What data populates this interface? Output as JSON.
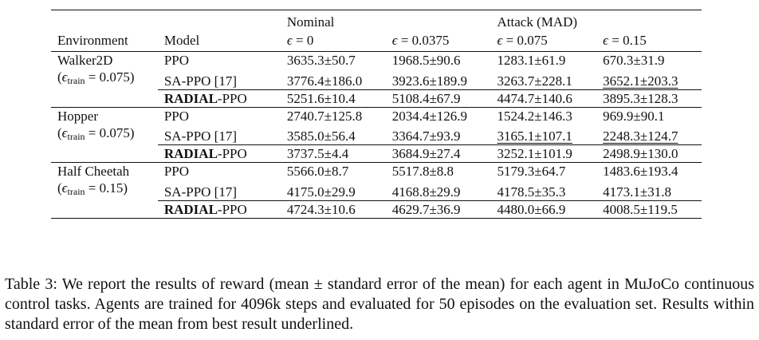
{
  "headers": {
    "environment": "Environment",
    "model": "Model",
    "nominal": "Nominal",
    "attack": "Attack (MAD)",
    "eps_cols": [
      "0",
      "0.0375",
      "0.075",
      "0.15"
    ]
  },
  "groups": [
    {
      "env": "Walker2D",
      "eps_train": "0.075",
      "rows": [
        {
          "model": "PPO",
          "values": [
            "3635.3±50.7",
            "1968.5±90.6",
            "1283.1±61.9",
            "670.3±31.9"
          ]
        },
        {
          "model": "SA-PPO [17]",
          "values": [
            "3776.4±186.0",
            "3923.6±189.9",
            "3263.7±228.1",
            "3652.1±203.3"
          ]
        }
      ],
      "radial": {
        "model_prefix": "RADIAL",
        "model_suffix": "-PPO",
        "values": [
          "5251.6±10.4",
          "5108.4±67.9",
          "4474.7±140.6",
          "3895.3±128.3"
        ]
      }
    },
    {
      "env": "Hopper",
      "eps_train": "0.075",
      "rows": [
        {
          "model": "PPO",
          "values": [
            "2740.7±125.8",
            "2034.4±126.9",
            "1524.2±146.3",
            "969.9±90.1"
          ]
        },
        {
          "model": "SA-PPO [17]",
          "values": [
            "3585.0±56.4",
            "3364.7±93.9",
            "3165.1±107.1",
            "2248.3±124.7"
          ]
        }
      ],
      "radial": {
        "model_prefix": "RADIAL",
        "model_suffix": "-PPO",
        "values": [
          "3737.5±4.4",
          "3684.9±27.4",
          "3252.1±101.9",
          "2498.9±130.0"
        ]
      }
    },
    {
      "env": "Half Cheetah",
      "eps_train": "0.15",
      "rows": [
        {
          "model": "PPO",
          "values": [
            "5566.0±8.7",
            "5517.8±8.8",
            "5179.3±64.7",
            "1483.6±193.4"
          ]
        },
        {
          "model": "SA-PPO [17]",
          "values": [
            "4175.0±29.9",
            "4168.8±29.9",
            "4178.5±35.3",
            "4173.1±31.8"
          ]
        }
      ],
      "radial": {
        "model_prefix": "RADIAL",
        "model_suffix": "-PPO",
        "values": [
          "4724.3±10.6",
          "4629.7±36.9",
          "4480.0±66.9",
          "4008.5±119.5"
        ]
      }
    }
  ],
  "caption": "Table 3: We report the results of reward (mean ± standard error of the mean) for each agent in MuJoCo continuous control tasks. Agents are trained for 4096k steps and evaluated for 50 episodes on the evaluation set. Results within standard error of the mean from best result underlined."
}
